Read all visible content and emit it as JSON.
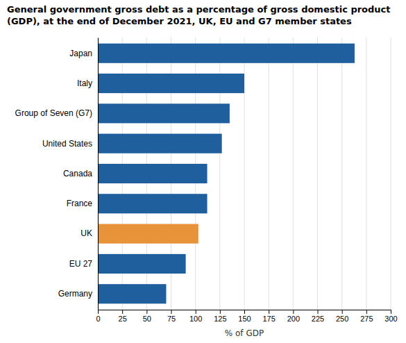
{
  "chart_data": {
    "type": "bar",
    "orientation": "horizontal",
    "title": "General government gross debt as a percentage of gross domestic product\n(GDP), at the end of December 2021, UK, EU and G7 member states",
    "categories": [
      "Japan",
      "Italy",
      "Group of Seven (G7)",
      "United States",
      "Canada",
      "France",
      "UK",
      "EU 27",
      "Germany"
    ],
    "values": [
      263,
      150,
      135,
      127,
      112,
      112,
      103,
      90,
      70
    ],
    "colors": [
      "#1f5f9e",
      "#1f5f9e",
      "#1f5f9e",
      "#1f5f9e",
      "#1f5f9e",
      "#1f5f9e",
      "#e8923a",
      "#1f5f9e",
      "#1f5f9e"
    ],
    "xlabel": "% of GDP",
    "xlim": [
      0,
      300
    ],
    "xticks": [
      0,
      25,
      50,
      75,
      100,
      125,
      150,
      175,
      200,
      225,
      250,
      275,
      300
    ],
    "grid": true
  }
}
